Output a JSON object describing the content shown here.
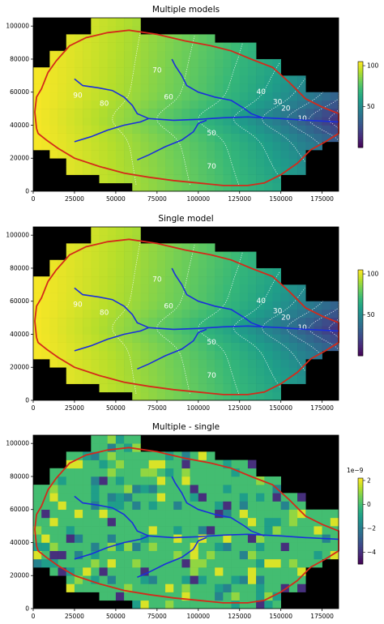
{
  "chart_data": [
    {
      "type": "heatmap",
      "title": "Multiple models",
      "xlim": [
        0,
        185000
      ],
      "ylim": [
        0,
        105000
      ],
      "x_ticks": [
        0,
        25000,
        50000,
        75000,
        100000,
        125000,
        150000,
        175000
      ],
      "x_tick_labels": [
        "0",
        "25000",
        "50000",
        "75000",
        "100000",
        "125000",
        "150000",
        "175000"
      ],
      "y_ticks": [
        0,
        20000,
        40000,
        60000,
        80000,
        100000
      ],
      "y_tick_labels": [
        "0",
        "20000",
        "40000",
        "60000",
        "80000",
        "100000"
      ],
      "colorbar": {
        "range": [
          0,
          105
        ],
        "ticks": [
          50,
          100
        ],
        "tick_labels": [
          "50",
          "100"
        ],
        "colormap": "viridis"
      },
      "contour_labels": [
        {
          "text": "90",
          "x": 27000,
          "y": 58000
        },
        {
          "text": "80",
          "x": 43000,
          "y": 53000
        },
        {
          "text": "70",
          "x": 75000,
          "y": 73000
        },
        {
          "text": "60",
          "x": 82000,
          "y": 57000
        },
        {
          "text": "50",
          "x": 108000,
          "y": 35000
        },
        {
          "text": "70",
          "x": 108000,
          "y": 15000
        },
        {
          "text": "40",
          "x": 138000,
          "y": 60000
        },
        {
          "text": "30",
          "x": 148000,
          "y": 54000
        },
        {
          "text": "20",
          "x": 153000,
          "y": 50000
        },
        {
          "text": "10",
          "x": 163000,
          "y": 44000
        }
      ]
    },
    {
      "type": "heatmap",
      "title": "Single model",
      "xlim": [
        0,
        185000
      ],
      "ylim": [
        0,
        105000
      ],
      "x_ticks": [
        0,
        25000,
        50000,
        75000,
        100000,
        125000,
        150000,
        175000
      ],
      "x_tick_labels": [
        "0",
        "25000",
        "50000",
        "75000",
        "100000",
        "125000",
        "150000",
        "175000"
      ],
      "y_ticks": [
        0,
        20000,
        40000,
        60000,
        80000,
        100000
      ],
      "y_tick_labels": [
        "0",
        "20000",
        "40000",
        "60000",
        "80000",
        "100000"
      ],
      "colorbar": {
        "range": [
          0,
          105
        ],
        "ticks": [
          50,
          100
        ],
        "tick_labels": [
          "50",
          "100"
        ],
        "colormap": "viridis"
      },
      "contour_labels": [
        {
          "text": "90",
          "x": 27000,
          "y": 58000
        },
        {
          "text": "80",
          "x": 43000,
          "y": 53000
        },
        {
          "text": "70",
          "x": 75000,
          "y": 73000
        },
        {
          "text": "60",
          "x": 82000,
          "y": 57000
        },
        {
          "text": "50",
          "x": 108000,
          "y": 35000
        },
        {
          "text": "70",
          "x": 108000,
          "y": 15000
        },
        {
          "text": "40",
          "x": 138000,
          "y": 60000
        },
        {
          "text": "30",
          "x": 148000,
          "y": 54000
        },
        {
          "text": "20",
          "x": 153000,
          "y": 50000
        },
        {
          "text": "10",
          "x": 163000,
          "y": 44000
        }
      ]
    },
    {
      "type": "heatmap",
      "title": "Multiple - single",
      "xlim": [
        0,
        185000
      ],
      "ylim": [
        0,
        105000
      ],
      "x_ticks": [
        0,
        25000,
        50000,
        75000,
        100000,
        125000,
        150000,
        175000
      ],
      "x_tick_labels": [
        "0",
        "25000",
        "50000",
        "75000",
        "100000",
        "125000",
        "150000",
        "175000"
      ],
      "y_ticks": [
        0,
        20000,
        40000,
        60000,
        80000,
        100000
      ],
      "y_tick_labels": [
        "0",
        "20000",
        "40000",
        "60000",
        "80000",
        "100000"
      ],
      "colorbar": {
        "range": [
          -5,
          2.2
        ],
        "ticks": [
          2,
          0,
          -2,
          -4
        ],
        "tick_labels": [
          "2",
          "0",
          "−2",
          "−4"
        ],
        "colormap": "viridis",
        "scale_label": "1e−9"
      },
      "contour_labels": []
    }
  ],
  "colors": {
    "boundary": "#d42a1a",
    "streams": "#1a2fdc",
    "background": "#000000"
  }
}
